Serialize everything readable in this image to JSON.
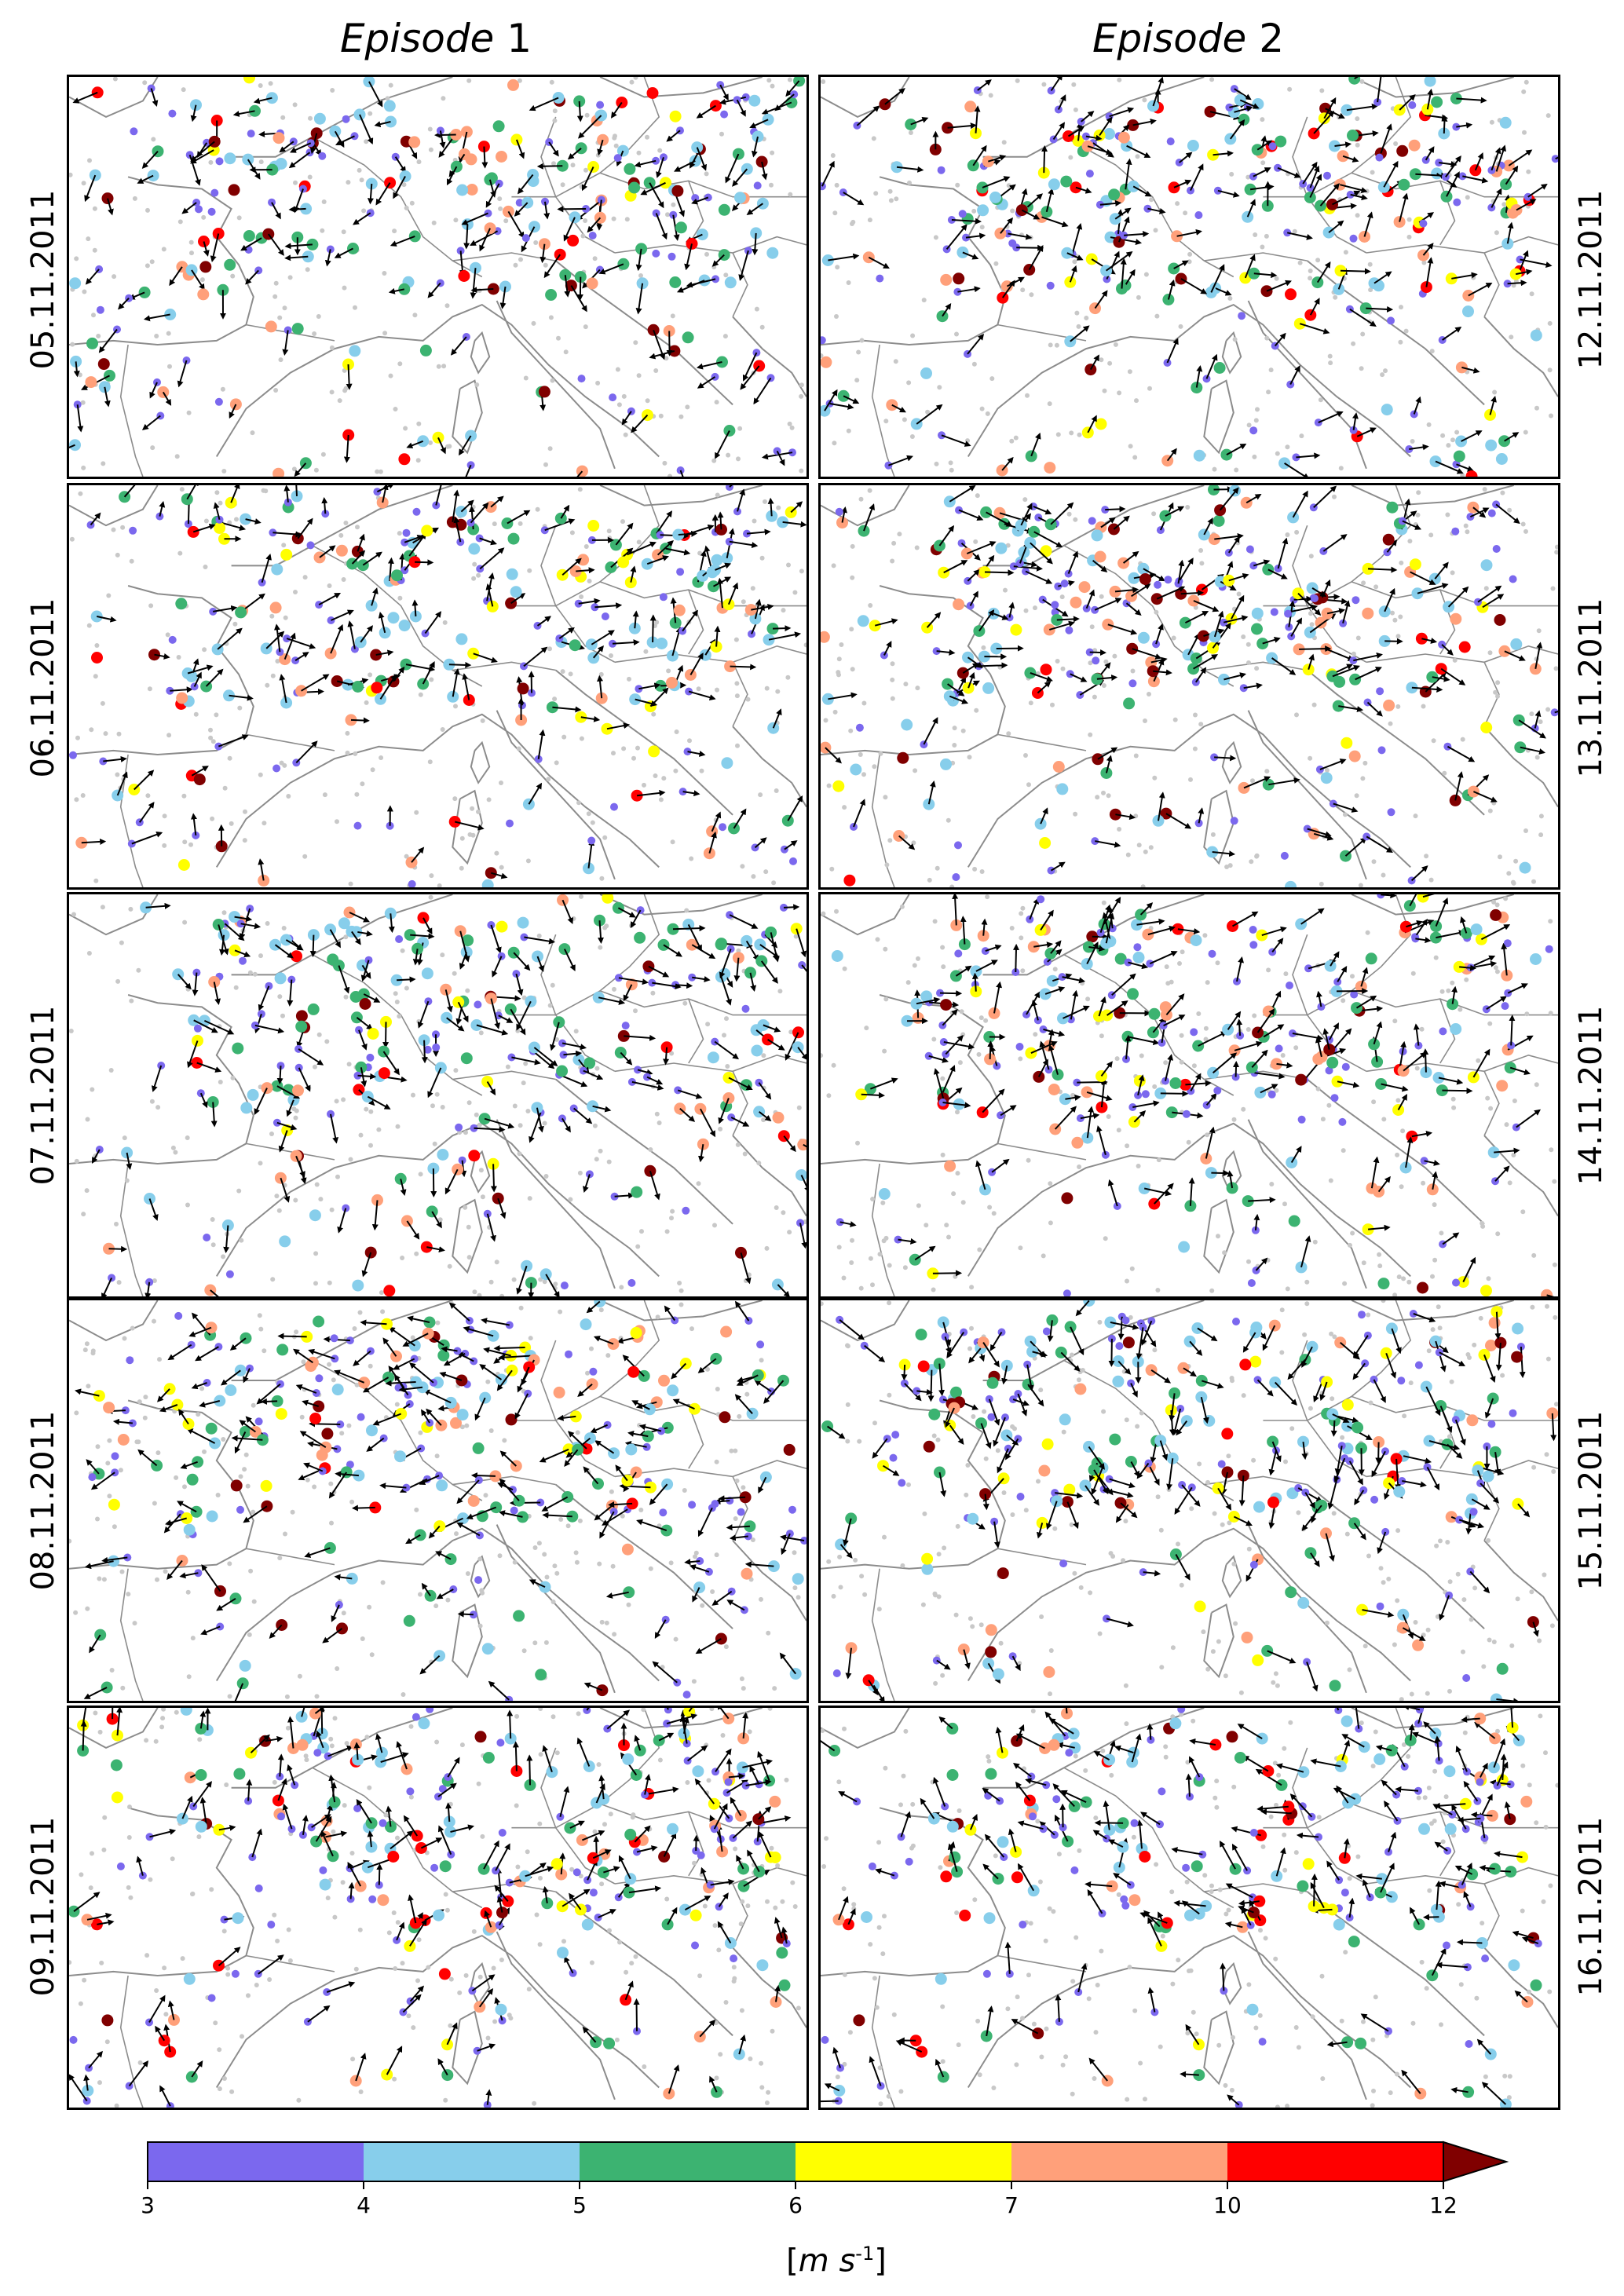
{
  "columns": [
    {
      "label_italic": "Episode",
      "label_num": "1"
    },
    {
      "label_italic": "Episode",
      "label_num": "2"
    }
  ],
  "left_dates": [
    "05.11.2011",
    "06.11.2011",
    "07.11.2011",
    "08.11.2011",
    "09.11.2011"
  ],
  "right_dates": [
    "12.11.2011",
    "13.11.2011",
    "14.11.2011",
    "15.11.2011",
    "16.11.2011"
  ],
  "colorbar": {
    "ticks": [
      "3",
      "4",
      "5",
      "6",
      "7",
      "10",
      "12"
    ],
    "unit_prefix": "[",
    "unit_m": "m",
    "unit_s": "s",
    "unit_exp": "-1",
    "unit_suffix": "]",
    "colors": [
      "#7b68ee",
      "#87ceeb",
      "#3cb371",
      "#ffff00",
      "#ffa07a",
      "#ff0000",
      "#800000"
    ],
    "extend": "max"
  },
  "map": {
    "station_colors": [
      "#7b68ee",
      "#87ceeb",
      "#3cb371",
      "#ffff00",
      "#ffa07a",
      "#ff0000",
      "#800000"
    ],
    "background_station_color": "#c8c8c8",
    "border_color": "#8c8c8c"
  }
}
